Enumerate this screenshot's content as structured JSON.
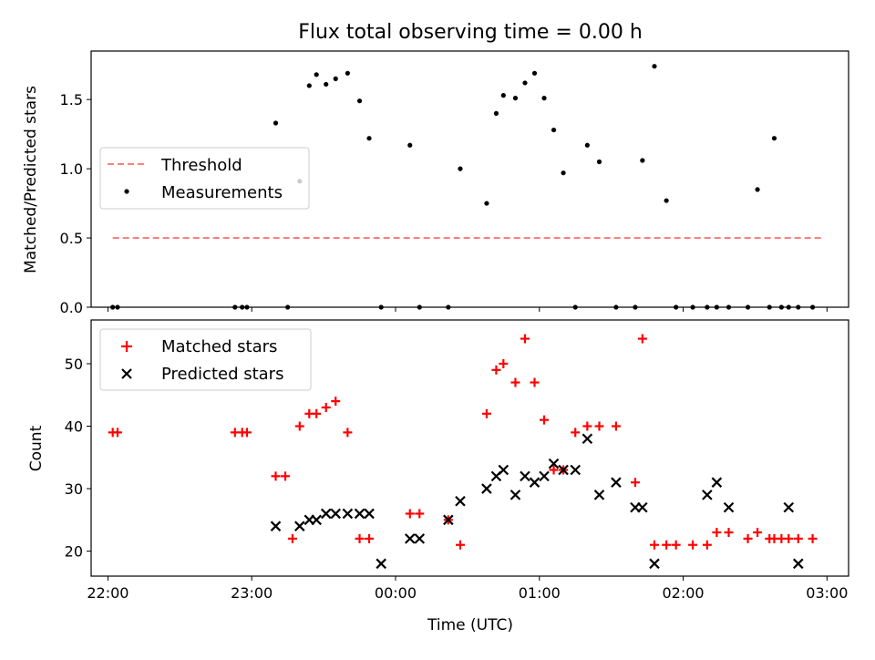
{
  "chart_data": [
    {
      "type": "scatter",
      "title": "Flux total observing time = 0.00 h",
      "xlabel": "",
      "ylabel": "Matched/Predicted stars",
      "xlim": [
        "21:53",
        "03:09"
      ],
      "ylim": [
        0,
        1.85
      ],
      "yticks": [
        "0.0",
        "0.5",
        "1.0",
        "1.5"
      ],
      "xticks": [
        "22:00",
        "23:00",
        "00:00",
        "01:00",
        "02:00",
        "03:00"
      ],
      "legend_position": "center-left",
      "series": [
        {
          "name": "Threshold",
          "kind": "dashed-line",
          "color": "#ff7f7f",
          "x": [
            "22:02",
            "02:58"
          ],
          "y": [
            0.5,
            0.5
          ]
        },
        {
          "name": "Measurements",
          "kind": "dot",
          "color": "#000000",
          "x": [
            "22:02",
            "22:04",
            "22:53",
            "22:56",
            "22:58",
            "23:10",
            "23:15",
            "23:20",
            "23:24",
            "23:27",
            "23:31",
            "23:35",
            "23:40",
            "23:45",
            "23:49",
            "23:54",
            "00:06",
            "00:10",
            "00:22",
            "00:27",
            "00:38",
            "00:42",
            "00:45",
            "00:50",
            "00:54",
            "00:58",
            "01:02",
            "01:06",
            "01:10",
            "01:15",
            "01:20",
            "01:25",
            "01:32",
            "01:40",
            "01:43",
            "01:48",
            "01:53",
            "01:57",
            "02:04",
            "02:10",
            "02:14",
            "02:19",
            "02:27",
            "02:31",
            "02:36",
            "02:38",
            "02:41",
            "02:44",
            "02:48",
            "02:54"
          ],
          "y": [
            0,
            0,
            0,
            0,
            0,
            1.33,
            0,
            0.91,
            1.6,
            1.68,
            1.61,
            1.65,
            1.69,
            1.49,
            1.22,
            0,
            1.17,
            0,
            0,
            1.0,
            0.75,
            1.4,
            1.53,
            1.51,
            1.62,
            1.69,
            1.51,
            1.28,
            0.97,
            0,
            1.17,
            1.05,
            0,
            0,
            1.06,
            1.74,
            0.77,
            0,
            0,
            0,
            0,
            0,
            0,
            0.85,
            0,
            1.22,
            0,
            0,
            0,
            0
          ]
        }
      ]
    },
    {
      "type": "scatter",
      "title": "",
      "xlabel": "Time (UTC)",
      "ylabel": "Count",
      "xlim": [
        "21:53",
        "03:09"
      ],
      "ylim": [
        16,
        57
      ],
      "yticks": [
        "20",
        "30",
        "40",
        "50"
      ],
      "xticks": [
        "22:00",
        "23:00",
        "00:00",
        "01:00",
        "02:00",
        "03:00"
      ],
      "legend_position": "upper-left",
      "series": [
        {
          "name": "Matched stars",
          "marker": "plus",
          "color": "#ff0000",
          "x": [
            "22:02",
            "22:04",
            "22:53",
            "22:56",
            "22:58",
            "23:10",
            "23:14",
            "23:17",
            "23:20",
            "23:24",
            "23:27",
            "23:31",
            "23:35",
            "23:40",
            "23:45",
            "23:49",
            "00:06",
            "00:10",
            "00:22",
            "00:27",
            "00:38",
            "00:42",
            "00:45",
            "00:50",
            "00:54",
            "00:58",
            "01:02",
            "01:06",
            "01:10",
            "01:15",
            "01:20",
            "01:25",
            "01:32",
            "01:40",
            "01:43",
            "01:48",
            "01:53",
            "01:57",
            "02:04",
            "02:10",
            "02:14",
            "02:19",
            "02:27",
            "02:31",
            "02:36",
            "02:38",
            "02:41",
            "02:44",
            "02:48",
            "02:54"
          ],
          "y": [
            39,
            39,
            39,
            39,
            39,
            32,
            32,
            22,
            40,
            42,
            42,
            43,
            44,
            39,
            22,
            22,
            26,
            26,
            25,
            21,
            42,
            49,
            50,
            47,
            54,
            47,
            41,
            33,
            33,
            39,
            40,
            40,
            40,
            31,
            54,
            21,
            21,
            21,
            21,
            21,
            23,
            23,
            22,
            23,
            22,
            22,
            22,
            22,
            22,
            22
          ]
        },
        {
          "name": "Predicted stars",
          "marker": "x",
          "color": "#000000",
          "x": [
            "23:10",
            "23:20",
            "23:24",
            "23:27",
            "23:31",
            "23:35",
            "23:40",
            "23:45",
            "23:49",
            "23:54",
            "00:06",
            "00:10",
            "00:22",
            "00:27",
            "00:38",
            "00:42",
            "00:45",
            "00:50",
            "00:54",
            "00:58",
            "01:02",
            "01:06",
            "01:10",
            "01:15",
            "01:20",
            "01:25",
            "01:32",
            "01:40",
            "01:43",
            "01:48",
            "02:10",
            "02:14",
            "02:19",
            "02:44",
            "02:48"
          ],
          "y": [
            24,
            24,
            25,
            25,
            26,
            26,
            26,
            26,
            26,
            18,
            22,
            22,
            25,
            28,
            30,
            32,
            33,
            29,
            32,
            31,
            32,
            34,
            33,
            33,
            38,
            29,
            31,
            27,
            27,
            18,
            29,
            31,
            27,
            27,
            18
          ]
        }
      ]
    }
  ]
}
